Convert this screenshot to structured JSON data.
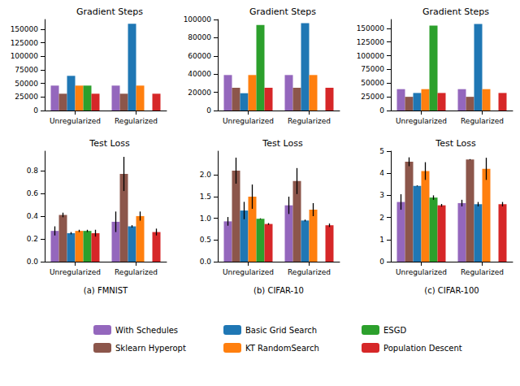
{
  "chart_data": [
    {
      "type": "bar",
      "title": "Gradient Steps",
      "categories": [
        "Unregularized",
        "Regularized"
      ],
      "ylim": [
        0,
        168000
      ],
      "yticks": [
        0,
        25000,
        50000,
        75000,
        100000,
        125000,
        150000
      ],
      "grid": false,
      "series": [
        {
          "name": "With Schedules",
          "color": "#9467bd",
          "values": [
            46000,
            46000
          ]
        },
        {
          "name": "Sklearn Hyperopt",
          "color": "#8c564b",
          "values": [
            31000,
            31000
          ]
        },
        {
          "name": "Basic Grid Search",
          "color": "#1f77b4",
          "values": [
            64000,
            160000
          ]
        },
        {
          "name": "KT RandomSearch",
          "color": "#ff7f0e",
          "values": [
            46000,
            46000
          ]
        },
        {
          "name": "ESGD",
          "color": "#2ca02c",
          "values": [
            46000,
            null
          ]
        },
        {
          "name": "Population Descent",
          "color": "#d62728",
          "values": [
            31000,
            31000
          ]
        }
      ]
    },
    {
      "type": "bar",
      "title": "Gradient Steps",
      "categories": [
        "Unregularized",
        "Regularized"
      ],
      "ylim": [
        0,
        100000
      ],
      "yticks": [
        0,
        20000,
        40000,
        60000,
        80000,
        100000
      ],
      "grid": false,
      "series": [
        {
          "name": "With Schedules",
          "color": "#9467bd",
          "values": [
            39000,
            39000
          ]
        },
        {
          "name": "Sklearn Hyperopt",
          "color": "#8c564b",
          "values": [
            25000,
            25000
          ]
        },
        {
          "name": "Basic Grid Search",
          "color": "#1f77b4",
          "values": [
            19000,
            96000
          ]
        },
        {
          "name": "KT RandomSearch",
          "color": "#ff7f0e",
          "values": [
            39000,
            39000
          ]
        },
        {
          "name": "ESGD",
          "color": "#2ca02c",
          "values": [
            94000,
            null
          ]
        },
        {
          "name": "Population Descent",
          "color": "#d62728",
          "values": [
            25000,
            25000
          ]
        }
      ]
    },
    {
      "type": "bar",
      "title": "Gradient Steps",
      "categories": [
        "Unregularized",
        "Regularized"
      ],
      "ylim": [
        0,
        166000
      ],
      "yticks": [
        0,
        25000,
        50000,
        75000,
        100000,
        125000,
        150000
      ],
      "grid": false,
      "series": [
        {
          "name": "With Schedules",
          "color": "#9467bd",
          "values": [
            39000,
            39000
          ]
        },
        {
          "name": "Sklearn Hyperopt",
          "color": "#8c564b",
          "values": [
            25000,
            25000
          ]
        },
        {
          "name": "Basic Grid Search",
          "color": "#1f77b4",
          "values": [
            32000,
            158000
          ]
        },
        {
          "name": "KT RandomSearch",
          "color": "#ff7f0e",
          "values": [
            39000,
            39000
          ]
        },
        {
          "name": "ESGD",
          "color": "#2ca02c",
          "values": [
            155000,
            null
          ]
        },
        {
          "name": "Population Descent",
          "color": "#d62728",
          "values": [
            32000,
            32000
          ]
        }
      ]
    },
    {
      "type": "bar",
      "title": "Test Loss",
      "xlabel": "(a) FMNIST",
      "categories": [
        "Unregularized",
        "Regularized"
      ],
      "ylim": [
        0,
        0.97
      ],
      "yticks": [
        {
          "value": 0,
          "label": "0.0"
        },
        0.2,
        0.4,
        0.6,
        0.8
      ],
      "grid": false,
      "series": [
        {
          "name": "With Schedules",
          "color": "#9467bd",
          "values": [
            0.27,
            0.35
          ],
          "errors": [
            0.04,
            0.09
          ]
        },
        {
          "name": "Sklearn Hyperopt",
          "color": "#8c564b",
          "values": [
            0.41,
            0.77
          ],
          "errors": [
            0.02,
            0.15
          ]
        },
        {
          "name": "Basic Grid Search",
          "color": "#1f77b4",
          "values": [
            0.25,
            0.31
          ],
          "errors": [
            0.01,
            0.01
          ]
        },
        {
          "name": "KT RandomSearch",
          "color": "#ff7f0e",
          "values": [
            0.27,
            0.4
          ],
          "errors": [
            0.01,
            0.04
          ]
        },
        {
          "name": "ESGD",
          "color": "#2ca02c",
          "values": [
            0.27,
            null
          ],
          "errors": [
            0.01,
            null
          ]
        },
        {
          "name": "Population Descent",
          "color": "#d62728",
          "values": [
            0.25,
            0.26
          ],
          "errors": [
            0.03,
            0.03
          ]
        }
      ]
    },
    {
      "type": "bar",
      "title": "Test Loss",
      "xlabel": "(b) CIFAR-10",
      "legend": "bottom",
      "categories": [
        "Unregularized",
        "Regularized"
      ],
      "ylim": [
        0,
        2.55
      ],
      "yticks": [
        {
          "value": 0,
          "label": "0.0"
        },
        0.5,
        {
          "value": 1,
          "label": "1.0"
        },
        1.5,
        {
          "value": 2,
          "label": "2.0"
        }
      ],
      "grid": false,
      "series": [
        {
          "name": "With Schedules",
          "color": "#9467bd",
          "values": [
            0.93,
            1.3
          ],
          "errors": [
            0.1,
            0.2
          ]
        },
        {
          "name": "Sklearn Hyperopt",
          "color": "#8c564b",
          "values": [
            2.1,
            1.86
          ],
          "errors": [
            0.3,
            0.3
          ]
        },
        {
          "name": "Basic Grid Search",
          "color": "#1f77b4",
          "values": [
            1.18,
            0.95
          ],
          "errors": [
            0.2,
            0.02
          ]
        },
        {
          "name": "KT RandomSearch",
          "color": "#ff7f0e",
          "values": [
            1.5,
            1.2
          ],
          "errors": [
            0.28,
            0.15
          ]
        },
        {
          "name": "ESGD",
          "color": "#2ca02c",
          "values": [
            0.99,
            null
          ],
          "errors": [
            0.01,
            null
          ]
        },
        {
          "name": "Population Descent",
          "color": "#d62728",
          "values": [
            0.87,
            0.84
          ],
          "errors": [
            0.02,
            0.04
          ]
        }
      ]
    },
    {
      "type": "bar",
      "title": "Test Loss",
      "xlabel": "(c) CIFAR-100",
      "categories": [
        "Unregularized",
        "Regularized"
      ],
      "ylim": [
        0,
        5
      ],
      "yticks": [
        0,
        1,
        2,
        3,
        4,
        5
      ],
      "grid": false,
      "series": [
        {
          "name": "With Schedules",
          "color": "#9467bd",
          "values": [
            2.7,
            2.65
          ],
          "errors": [
            0.35,
            0.15
          ]
        },
        {
          "name": "Sklearn Hyperopt",
          "color": "#8c564b",
          "values": [
            4.52,
            4.62
          ],
          "errors": [
            0.2,
            0.02
          ]
        },
        {
          "name": "Basic Grid Search",
          "color": "#1f77b4",
          "values": [
            3.43,
            2.6
          ],
          "errors": [
            0.02,
            0.1
          ]
        },
        {
          "name": "KT RandomSearch",
          "color": "#ff7f0e",
          "values": [
            4.1,
            4.2
          ],
          "errors": [
            0.4,
            0.5
          ]
        },
        {
          "name": "ESGD",
          "color": "#2ca02c",
          "values": [
            2.9,
            null
          ],
          "errors": [
            0.1,
            null
          ]
        },
        {
          "name": "Population Descent",
          "color": "#d62728",
          "values": [
            2.55,
            2.6
          ],
          "errors": [
            0.06,
            0.1
          ]
        }
      ]
    }
  ]
}
